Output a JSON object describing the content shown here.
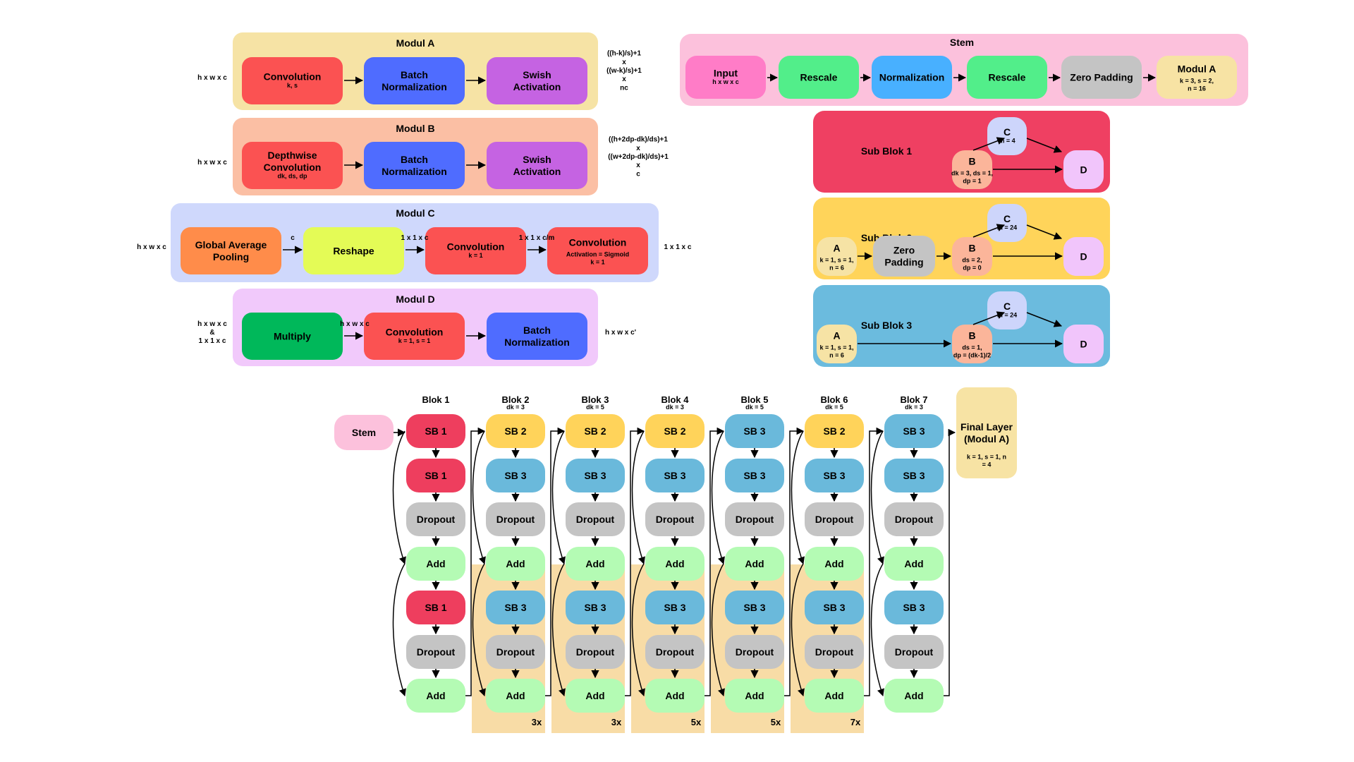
{
  "colors": {
    "red": "#fb5252",
    "blue": "#4f6cff",
    "purple": "#c563e2",
    "orange": "#ff8c4a",
    "lime": "#e4fb56",
    "green": "#00b85a",
    "pink_input": "#ff7cc7",
    "mint": "#52ee8a",
    "sky": "#48b0ff",
    "gray": "#c4c4c4",
    "cream": "#f7e3a4",
    "subblock1_bg": "#ef4062",
    "subblock2_bg": "#ffd45a",
    "subblock3_bg": "#6bbbde",
    "node_c": "#cdd5fb",
    "node_d": "#f1c5fb",
    "node_a": "#f6e3a5",
    "node_b": "#fbb59a",
    "sb1": "#ee3e5e",
    "sb2": "#ffd35a",
    "sb3": "#6ab9db",
    "add": "#b4fbb4",
    "repeat_bg": "#f8dca6"
  },
  "modules": {
    "a": {
      "title": "Modul A",
      "input": "h x w x c",
      "output": "((h-k)/s)+1\nx\n((w-k)/s)+1\nx\nnc",
      "boxes": [
        {
          "label": "Convolution",
          "sub": "k, s"
        },
        {
          "label": "Batch\nNormalization",
          "sub": ""
        },
        {
          "label": "Swish\nActivation",
          "sub": ""
        }
      ]
    },
    "b": {
      "title": "Modul B",
      "input": "h x w x c",
      "output": "((h+2dp-dk)/ds)+1\nx\n((w+2dp-dk)/ds)+1\nx\nc",
      "boxes": [
        {
          "label": "Depthwise\nConvolution",
          "sub": "dk, ds, dp"
        },
        {
          "label": "Batch\nNormalization",
          "sub": ""
        },
        {
          "label": "Swish\nActivation",
          "sub": ""
        }
      ]
    },
    "c": {
      "title": "Modul C",
      "input": "h x w x c",
      "output": "1 x 1 x c",
      "edges": [
        "c",
        "1 x 1 x c",
        "1 x 1 x c/m"
      ],
      "boxes": [
        {
          "label": "Global Average\nPooling",
          "sub": ""
        },
        {
          "label": "Reshape",
          "sub": ""
        },
        {
          "label": "Convolution",
          "sub": "k = 1"
        },
        {
          "label": "Convolution",
          "sub": "Activation = Sigmoid\nk = 1"
        }
      ]
    },
    "d": {
      "title": "Modul D",
      "input": "h x w x c\n&\n1 x 1 x c",
      "output": "h x w x c'",
      "mid": "h x w x c",
      "boxes": [
        {
          "label": "Multiply",
          "sub": ""
        },
        {
          "label": "Convolution",
          "sub": "k = 1, s = 1"
        },
        {
          "label": "Batch\nNormalization",
          "sub": ""
        }
      ]
    }
  },
  "stem": {
    "title": "Stem",
    "boxes": [
      {
        "label": "Input",
        "sub": "h x w x c"
      },
      {
        "label": "Rescale",
        "sub": ""
      },
      {
        "label": "Normalization",
        "sub": ""
      },
      {
        "label": "Rescale",
        "sub": ""
      },
      {
        "label": "Zero Padding",
        "sub": ""
      },
      {
        "label": "Modul A",
        "sub": "k = 3, s = 2,\nn = 16"
      }
    ]
  },
  "subblocks": [
    {
      "title": "Sub Blok 1",
      "a": null,
      "zero": null,
      "b": {
        "label": "B",
        "sub": "dk = 3, ds = 1,\ndp = 1"
      },
      "c": {
        "label": "C",
        "sub": "m = 4"
      },
      "d": "D"
    },
    {
      "title": "Sub Blok 2",
      "a": {
        "label": "A",
        "sub": "k = 1, s = 1,\nn = 6"
      },
      "zero": "Zero\nPadding",
      "b": {
        "label": "B",
        "sub": "ds = 2,\ndp = 0"
      },
      "c": {
        "label": "C",
        "sub": "m = 24"
      },
      "d": "D"
    },
    {
      "title": "Sub Blok 3",
      "a": {
        "label": "A",
        "sub": "k = 1, s = 1,\nn = 6"
      },
      "zero": null,
      "b": {
        "label": "B",
        "sub": "ds = 1,\ndp = (dk-1)/2"
      },
      "c": {
        "label": "C",
        "sub": "m = 24"
      },
      "d": "D"
    }
  ],
  "network": {
    "stem_label": "Stem",
    "final": {
      "label": "Final Layer\n(Modul A)",
      "sub": "k = 1, s = 1, n\n= 4"
    },
    "blocks": [
      {
        "title": "Blok 1",
        "dk": "",
        "first": "SB 1",
        "second": "SB 1",
        "third": "SB 1",
        "repeat": ""
      },
      {
        "title": "Blok 2",
        "dk": "dk = 3",
        "first": "SB 2",
        "second": "SB 3",
        "third": "SB 3",
        "repeat": "3x"
      },
      {
        "title": "Blok 3",
        "dk": "dk = 5",
        "first": "SB 2",
        "second": "SB 3",
        "third": "SB 3",
        "repeat": "3x"
      },
      {
        "title": "Blok 4",
        "dk": "dk = 3",
        "first": "SB 2",
        "second": "SB 3",
        "third": "SB 3",
        "repeat": "5x"
      },
      {
        "title": "Blok 5",
        "dk": "dk = 5",
        "first": "SB 3",
        "second": "SB 3",
        "third": "SB 3",
        "repeat": "5x"
      },
      {
        "title": "Blok 6",
        "dk": "dk = 5",
        "first": "SB 2",
        "second": "SB 3",
        "third": "SB 3",
        "repeat": "7x"
      },
      {
        "title": "Blok 7",
        "dk": "dk = 3",
        "first": "SB 3",
        "second": "SB 3",
        "third": "SB 3",
        "repeat": ""
      }
    ],
    "dropout": "Dropout",
    "add": "Add"
  }
}
